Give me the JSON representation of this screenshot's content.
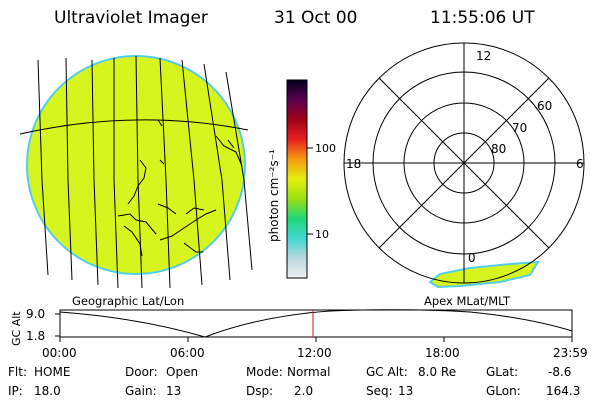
{
  "header": {
    "instrument": "Ultraviolet Imager",
    "date": "31 Oct 00",
    "time": "11:55:06 UT"
  },
  "colorbar": {
    "unit_label": "photon cm⁻²s⁻¹",
    "ticks": [
      "100",
      "10"
    ]
  },
  "polar_plot": {
    "mlt_labels": {
      "top": "12",
      "left": "18",
      "right": "6",
      "bottom": "0"
    },
    "lat_labels": [
      "60",
      "70",
      "80"
    ]
  },
  "captions": {
    "geo": "Geographic Lat/Lon",
    "apex": "Apex MLat/MLT"
  },
  "altitude_plot": {
    "axis_label": "GC Alt",
    "y_ticks": [
      "9.0",
      "1.8"
    ],
    "x_ticks": [
      "00:00",
      "06:00",
      "12:00",
      "18:00",
      "23:59"
    ],
    "current_time_marker": "11:55",
    "colors": {
      "marker": "#e01010",
      "line": "#000000"
    }
  },
  "status": {
    "row1": [
      {
        "key": "Flt:",
        "value": "HOME"
      },
      {
        "key": "Door:",
        "value": "Open"
      },
      {
        "key": "Mode:",
        "value": "Normal"
      },
      {
        "key": "GC Alt:",
        "value": "8.0 Re"
      },
      {
        "key": "GLat:",
        "value": "-8.6"
      }
    ],
    "row2": [
      {
        "key": "IP:",
        "value": "18.0"
      },
      {
        "key": "Gain:",
        "value": "13"
      },
      {
        "key": "Dsp:",
        "value": "2.0"
      },
      {
        "key": "Seq:",
        "value": "13"
      },
      {
        "key": "GLon:",
        "value": "164.3"
      }
    ]
  },
  "colors": {
    "earth_fill": "#d6f51f",
    "earth_rim": "#55cde8",
    "colorbar_stops": [
      "#f0f0f0",
      "#b9d8de",
      "#40d8d0",
      "#22d67a",
      "#9be010",
      "#e6ee10",
      "#f59a10",
      "#e82020",
      "#a00018",
      "#5a0050",
      "#000020"
    ]
  }
}
